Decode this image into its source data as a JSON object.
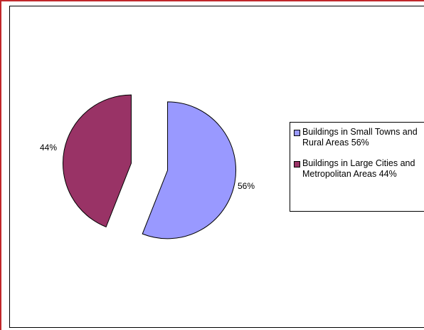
{
  "chart_data": {
    "type": "pie",
    "title": "",
    "exploded": true,
    "legend_position": "right",
    "slices": [
      {
        "label": "Buildings in Small Towns and Rural Areas 56%",
        "value": 56,
        "value_label": "56%",
        "color": "#9999ff"
      },
      {
        "label": "Buildings in Large Cities and Metropolitan Areas 44%",
        "value": 44,
        "value_label": "44%",
        "color": "#993366"
      }
    ]
  }
}
